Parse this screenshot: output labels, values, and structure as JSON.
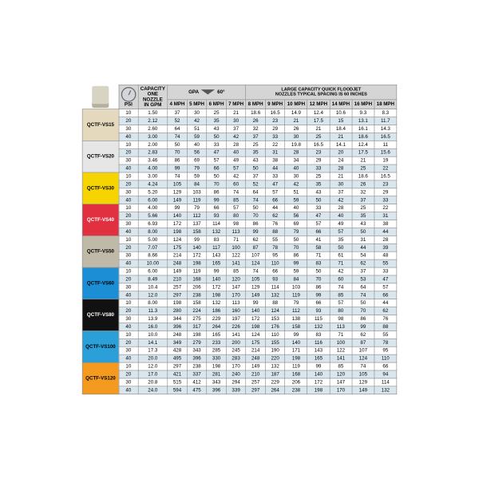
{
  "header": {
    "psi": "PSI",
    "capacity": "CAPACITY\nONE\nNOZZLE\nIN GPM",
    "gpa_label": "GPA",
    "gpa_angle": "60°",
    "subtitle": "LARGE CAPACITY QUICK FLOODJET\nNOZZLES TYPICAL SPACING IS 60 INCHES",
    "speeds": [
      "4 MPH",
      "5 MPH",
      "6 MPH",
      "7 MPH",
      "8 MPH",
      "9 MPH",
      "10 MPH",
      "12 MPH",
      "14 MPH",
      "16 MPH",
      "18 MPH"
    ]
  },
  "groups": [
    {
      "label": "QCTF-VS15",
      "color": "#e4d9bd",
      "rows": [
        {
          "psi": 10,
          "cap": "1.50",
          "v": [
            37,
            30,
            25,
            21,
            18.6,
            16.5,
            14.9,
            12.4,
            10.6,
            9.3,
            8.3
          ]
        },
        {
          "psi": 20,
          "cap": "2.12",
          "v": [
            52,
            42,
            35,
            30,
            26,
            23,
            21,
            17.5,
            15.0,
            13.1,
            11.7
          ]
        },
        {
          "psi": 30,
          "cap": "2.60",
          "v": [
            64,
            51,
            43,
            37,
            32,
            29,
            26,
            21,
            18.4,
            16.1,
            14.3
          ]
        },
        {
          "psi": 40,
          "cap": "3.00",
          "v": [
            74,
            59,
            50,
            42,
            37,
            33,
            30,
            25,
            21,
            18.6,
            16.5
          ]
        }
      ]
    },
    {
      "label": "QCTF-VS20",
      "color": "#e6e6e6",
      "rows": [
        {
          "psi": 10,
          "cap": "2.00",
          "v": [
            50,
            40,
            33,
            28,
            25,
            22,
            19.8,
            16.5,
            14.1,
            12.4,
            11.0
          ]
        },
        {
          "psi": 20,
          "cap": "2.83",
          "v": [
            70,
            56,
            47,
            40,
            35,
            31,
            28,
            23,
            20,
            17.5,
            15.6
          ]
        },
        {
          "psi": 30,
          "cap": "3.46",
          "v": [
            86,
            69,
            57,
            49,
            43,
            38,
            34,
            29,
            24,
            21,
            19.0
          ]
        },
        {
          "psi": 40,
          "cap": "4.00",
          "v": [
            99,
            79,
            66,
            57,
            50,
            44,
            40,
            33,
            28,
            25,
            22
          ]
        }
      ]
    },
    {
      "label": "QCTF-VS30",
      "color": "#f5d400",
      "rows": [
        {
          "psi": 10,
          "cap": "3.00",
          "v": [
            74,
            59,
            50,
            42,
            37,
            33,
            30,
            25,
            21,
            18.6,
            16.5
          ]
        },
        {
          "psi": 20,
          "cap": "4.24",
          "v": [
            105,
            84,
            70,
            60,
            52,
            47,
            42,
            35,
            30,
            26,
            23
          ]
        },
        {
          "psi": 30,
          "cap": "5.20",
          "v": [
            129,
            103,
            86,
            74,
            64,
            57,
            51,
            43,
            37,
            32,
            29
          ]
        },
        {
          "psi": 40,
          "cap": "6.00",
          "v": [
            149,
            119,
            99,
            85,
            74,
            66,
            59,
            50,
            42,
            37,
            33
          ]
        }
      ]
    },
    {
      "label": "QCTF-VS40",
      "color": "#e13040",
      "rows": [
        {
          "psi": 10,
          "cap": "4.00",
          "v": [
            99,
            79,
            66,
            57,
            50,
            44,
            40,
            33,
            28,
            25,
            22
          ]
        },
        {
          "psi": 20,
          "cap": "5.66",
          "v": [
            140,
            112,
            93,
            80,
            70,
            62,
            56,
            47,
            40,
            35,
            31
          ]
        },
        {
          "psi": 30,
          "cap": "6.93",
          "v": [
            172,
            137,
            114,
            98,
            86,
            76,
            69,
            57,
            49,
            43,
            38
          ]
        },
        {
          "psi": 40,
          "cap": "8.00",
          "v": [
            198,
            158,
            132,
            113,
            99,
            88,
            79,
            66,
            57,
            50,
            44
          ]
        }
      ]
    },
    {
      "label": "QCTF-VS50",
      "color": "#bfb9a8",
      "rows": [
        {
          "psi": 10,
          "cap": "5.00",
          "v": [
            124,
            99,
            83,
            71,
            62,
            55,
            50,
            41,
            35,
            31,
            28
          ]
        },
        {
          "psi": 20,
          "cap": "7.07",
          "v": [
            175,
            140,
            117,
            100,
            87,
            78,
            70,
            58,
            50,
            44,
            39
          ]
        },
        {
          "psi": 30,
          "cap": "8.66",
          "v": [
            214,
            172,
            143,
            122,
            107,
            95,
            86,
            71,
            61,
            54,
            48
          ]
        },
        {
          "psi": 40,
          "cap": "10.00",
          "v": [
            248,
            198,
            165,
            141,
            124,
            110,
            99,
            83,
            71,
            62,
            55
          ]
        }
      ]
    },
    {
      "label": "QCTF-VS60",
      "color": "#1b8ed6",
      "rows": [
        {
          "psi": 10,
          "cap": "6.00",
          "v": [
            149,
            119,
            99,
            85,
            74,
            66,
            59,
            50,
            42,
            37,
            33
          ]
        },
        {
          "psi": 20,
          "cap": "8.49",
          "v": [
            210,
            168,
            140,
            120,
            105,
            93,
            84,
            70,
            60,
            53,
            47
          ]
        },
        {
          "psi": 30,
          "cap": "10.4",
          "v": [
            257,
            206,
            172,
            147,
            129,
            114,
            103,
            86,
            74,
            64,
            57
          ]
        },
        {
          "psi": 40,
          "cap": "12.0",
          "v": [
            297,
            238,
            198,
            170,
            149,
            132,
            119,
            99,
            85,
            74,
            66
          ]
        }
      ]
    },
    {
      "label": "QCTF-VS80",
      "color": "#111111",
      "rows": [
        {
          "psi": 10,
          "cap": "8.00",
          "v": [
            198,
            158,
            132,
            113,
            99,
            88,
            79,
            66,
            57,
            50,
            44
          ]
        },
        {
          "psi": 20,
          "cap": "11.3",
          "v": [
            280,
            224,
            186,
            160,
            140,
            124,
            112,
            93,
            80,
            70,
            62
          ]
        },
        {
          "psi": 30,
          "cap": "13.9",
          "v": [
            344,
            275,
            229,
            197,
            172,
            153,
            138,
            115,
            98,
            86,
            76
          ]
        },
        {
          "psi": 40,
          "cap": "16.0",
          "v": [
            396,
            317,
            264,
            226,
            198,
            176,
            158,
            132,
            113,
            99,
            88
          ]
        }
      ]
    },
    {
      "label": "QCTF-VS100",
      "color": "#2a9fd8",
      "rows": [
        {
          "psi": 10,
          "cap": "10.0",
          "v": [
            248,
            198,
            165,
            141,
            124,
            110,
            99,
            83,
            71,
            62,
            55
          ]
        },
        {
          "psi": 20,
          "cap": "14.1",
          "v": [
            349,
            279,
            233,
            200,
            175,
            155,
            140,
            116,
            100,
            87,
            78
          ]
        },
        {
          "psi": 30,
          "cap": "17.3",
          "v": [
            428,
            343,
            285,
            245,
            214,
            190,
            171,
            143,
            122,
            107,
            95
          ]
        },
        {
          "psi": 40,
          "cap": "20.0",
          "v": [
            495,
            396,
            330,
            283,
            248,
            220,
            198,
            165,
            141,
            124,
            110
          ]
        }
      ]
    },
    {
      "label": "QCTF-VS120",
      "color": "#f39a1f",
      "rows": [
        {
          "psi": 10,
          "cap": "12.0",
          "v": [
            297,
            238,
            198,
            170,
            149,
            132,
            119,
            99,
            85,
            74,
            66
          ]
        },
        {
          "psi": 20,
          "cap": "17.0",
          "v": [
            421,
            337,
            281,
            240,
            210,
            187,
            168,
            140,
            120,
            105,
            94
          ]
        },
        {
          "psi": 30,
          "cap": "20.8",
          "v": [
            515,
            412,
            343,
            294,
            257,
            229,
            206,
            172,
            147,
            129,
            114
          ]
        },
        {
          "psi": 40,
          "cap": "24.0",
          "v": [
            594,
            475,
            396,
            339,
            297,
            264,
            238,
            198,
            170,
            149,
            132
          ]
        }
      ]
    }
  ]
}
